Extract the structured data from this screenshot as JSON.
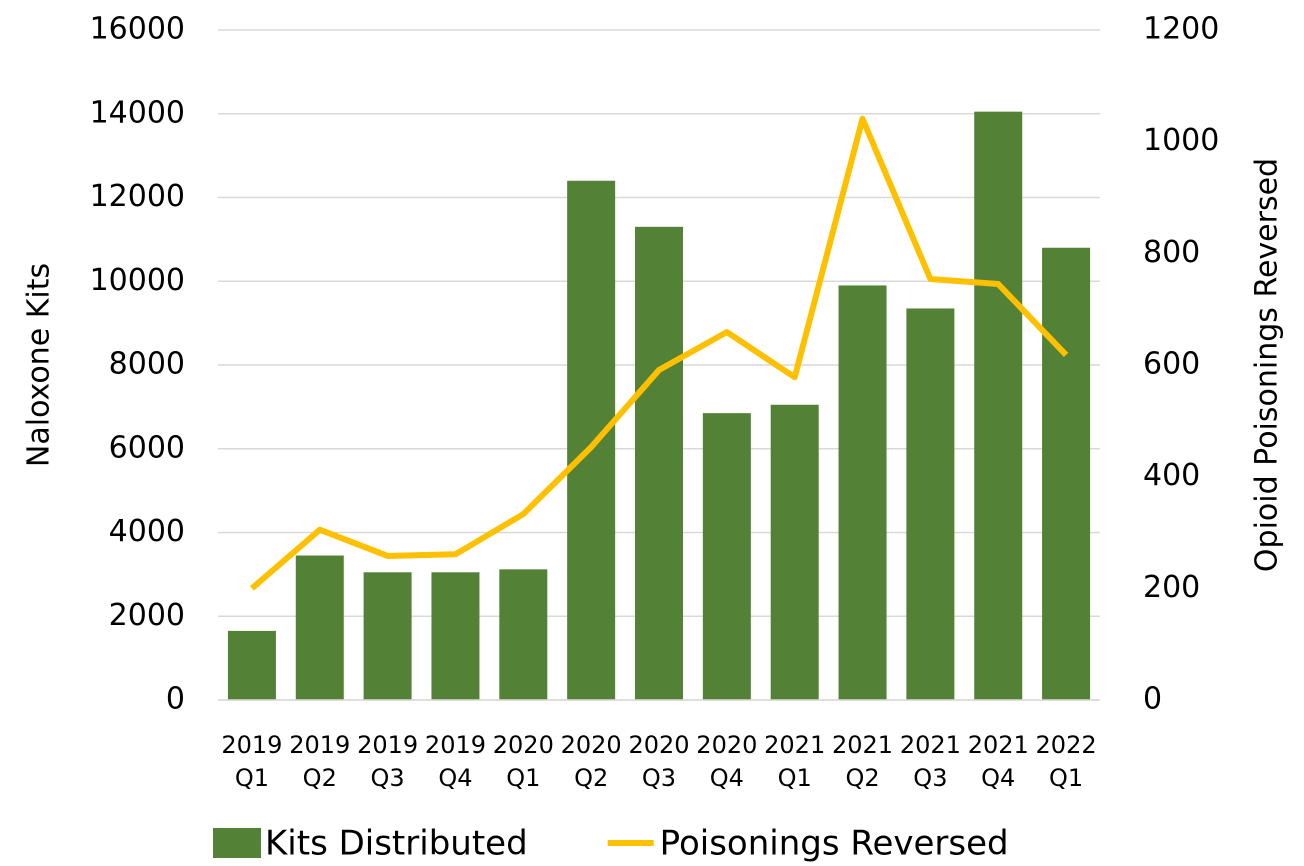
{
  "chart_data": {
    "type": "bar_line",
    "categories": [
      [
        "2019",
        "Q1"
      ],
      [
        "2019",
        "Q2"
      ],
      [
        "2019",
        "Q3"
      ],
      [
        "2019",
        "Q4"
      ],
      [
        "2020",
        "Q1"
      ],
      [
        "2020",
        "Q2"
      ],
      [
        "2020",
        "Q3"
      ],
      [
        "2020",
        "Q4"
      ],
      [
        "2021",
        "Q1"
      ],
      [
        "2021",
        "Q2"
      ],
      [
        "2021",
        "Q3"
      ],
      [
        "2021",
        "Q4"
      ],
      [
        "2022",
        "Q1"
      ]
    ],
    "series": [
      {
        "name": "Kits Distributed",
        "type": "bar",
        "color": "#538135",
        "values": [
          1650,
          3450,
          3050,
          3050,
          3120,
          12400,
          11300,
          6850,
          7050,
          9900,
          9350,
          14050,
          10800
        ]
      },
      {
        "name": "Poisonings Reversed",
        "type": "line",
        "color": "#ffc000",
        "axis": "y2",
        "values": [
          200,
          305,
          258,
          261,
          333,
          453,
          591,
          659,
          578,
          1041,
          754,
          745,
          618
        ]
      }
    ],
    "y_label": "Naloxone Kits",
    "y2_label": "Opioid Poisonings Reversed",
    "ylim": [
      0,
      16000
    ],
    "yticks": [
      0,
      2000,
      4000,
      6000,
      8000,
      10000,
      12000,
      14000,
      16000
    ],
    "y2lim": [
      0,
      1200
    ],
    "y2ticks": [
      0,
      200,
      400,
      600,
      800,
      1000,
      1200
    ],
    "grid": true,
    "legend": "bottom"
  }
}
